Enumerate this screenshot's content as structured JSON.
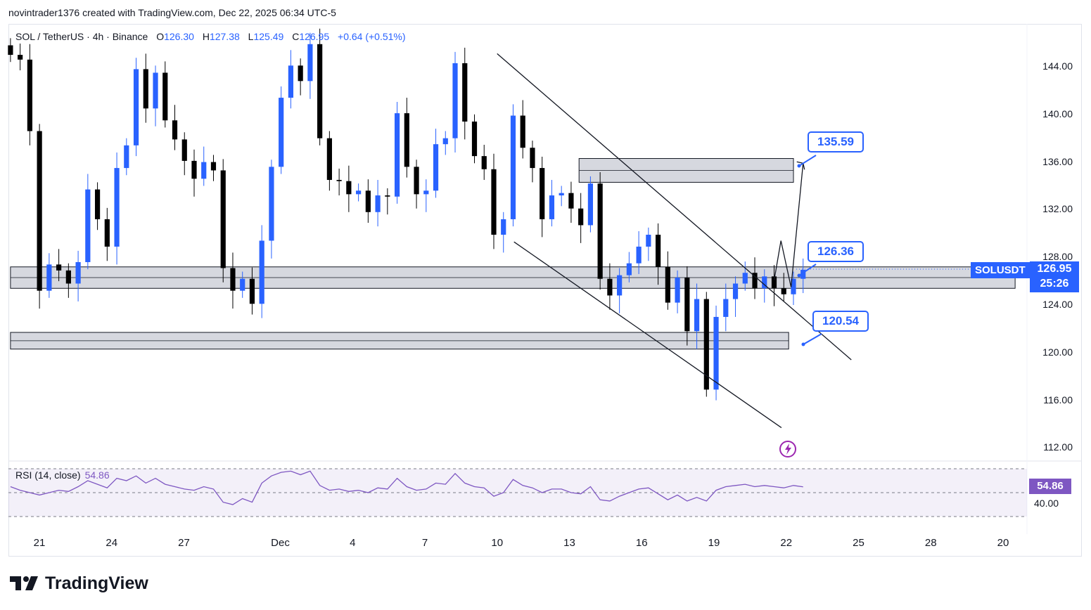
{
  "credit": "novintrader1376 created with TradingView.com, Dec 22, 2025 06:34 UTC-5",
  "legend": {
    "symbol": "SOL / TetherUS · 4h · Binance",
    "open_label": "O",
    "open": "126.30",
    "high_label": "H",
    "high": "127.38",
    "low_label": "L",
    "low": "125.49",
    "close_label": "C",
    "close": "126.95",
    "change": "+0.64 (+0.51%)"
  },
  "price_tag": {
    "symbol": "SOLUSDT",
    "price": "126.95",
    "countdown": "25:26"
  },
  "callouts": {
    "target": "135.59",
    "mid": "126.36",
    "low": "120.54"
  },
  "rsi": {
    "label": "RSI (14, close)",
    "value": "54.86",
    "level": "40.00"
  },
  "brand": "TradingView",
  "colors": {
    "up": "#2962ff",
    "down": "#000000",
    "rsi": "#7e57c2",
    "zone_fill": "#d1d4dc"
  },
  "chart_data": {
    "type": "candlestick",
    "title": "SOL / TetherUS · 4h · Binance",
    "ylim": [
      110,
      147
    ],
    "y_ticks": [
      144,
      140,
      136,
      132,
      128,
      124,
      120,
      116,
      112
    ],
    "y_tick_labels": [
      "144.00",
      "140.00",
      "136.00",
      "132.00",
      "128.00",
      "124.00",
      "120.00",
      "116.00",
      "112.00"
    ],
    "x_ticks": [
      {
        "label": "21",
        "day": 0
      },
      {
        "label": "24",
        "day": 3
      },
      {
        "label": "27",
        "day": 6
      },
      {
        "label": "Dec",
        "day": 10
      },
      {
        "label": "4",
        "day": 13
      },
      {
        "label": "7",
        "day": 16
      },
      {
        "label": "10",
        "day": 19
      },
      {
        "label": "13",
        "day": 22
      },
      {
        "label": "16",
        "day": 25
      },
      {
        "label": "19",
        "day": 28
      },
      {
        "label": "22",
        "day": 31
      },
      {
        "label": "25",
        "day": 34
      },
      {
        "label": "28",
        "day": 37
      },
      {
        "label": "20",
        "day": 40
      }
    ],
    "last_price": 126.95,
    "zones": [
      {
        "name": "resistance",
        "from_day": 22.4,
        "to_day": 31.3,
        "low": 134.3,
        "high": 136.3
      },
      {
        "name": "pivot",
        "from_day": -1.2,
        "to_day": 40.5,
        "low": 125.4,
        "high": 127.2
      },
      {
        "name": "support",
        "from_day": -1.2,
        "to_day": 31.1,
        "low": 120.3,
        "high": 121.7
      }
    ],
    "channel": {
      "upper": {
        "from": [
          19.0,
          145.1
        ],
        "to": [
          33.7,
          119.4
        ]
      },
      "lower": [
        19.7,
        129.3,
        30.8,
        113.7
      ]
    },
    "projection": [
      [
        30.5,
        126.1
      ],
      [
        30.78,
        129.4
      ],
      [
        31.2,
        125.5
      ],
      [
        31.7,
        135.9
      ]
    ],
    "closes": [
      145,
      144.6,
      138.6,
      125.2,
      127.4,
      126.9,
      125.8,
      127.6,
      133.7,
      131.2,
      128.9,
      135.5,
      137.4,
      143.8,
      140.5,
      143.5,
      139.5,
      137.9,
      136.1,
      134.6,
      136,
      135.3,
      127.1,
      125.2,
      126.2,
      124.1,
      129.4,
      135.6,
      141.4,
      144.1,
      142.8,
      145.9,
      138,
      134.5,
      134.4,
      133.3,
      133.6,
      131.8,
      133.2,
      133.1,
      140.1,
      135.6,
      133.3,
      133.6,
      137.5,
      138,
      144.3,
      139.4,
      136.5,
      135.4,
      129.9,
      131.2,
      139.9,
      137.2,
      135.5,
      131.2,
      133.2,
      133.4,
      132.1,
      130.7,
      134.2,
      126.2,
      124.8,
      126.5,
      127.5,
      128.9,
      129.9,
      127.2,
      124.2,
      126.3,
      121.8,
      124.5,
      116.9,
      123,
      124.5,
      125.8,
      126.7,
      125.4,
      126.4,
      125.4,
      124.9,
      126.2,
      126.95
    ],
    "rsi_series": [
      55,
      52,
      50,
      48,
      50,
      52,
      51,
      55,
      60,
      57,
      54,
      62,
      60,
      64,
      58,
      62,
      57,
      55,
      53,
      52,
      55,
      53,
      42,
      40,
      45,
      42,
      58,
      64,
      67,
      68,
      65,
      68,
      56,
      52,
      53,
      51,
      52,
      50,
      54,
      53,
      62,
      55,
      52,
      53,
      58,
      57,
      66,
      58,
      55,
      54,
      47,
      50,
      61,
      56,
      54,
      50,
      53,
      53,
      50,
      49,
      55,
      44,
      43,
      47,
      50,
      53,
      54,
      49,
      44,
      48,
      43,
      46,
      43,
      52,
      55,
      56,
      57,
      55,
      56,
      55,
      54,
      56,
      54.86
    ],
    "rsi_levels": [
      70,
      50,
      30
    ]
  }
}
